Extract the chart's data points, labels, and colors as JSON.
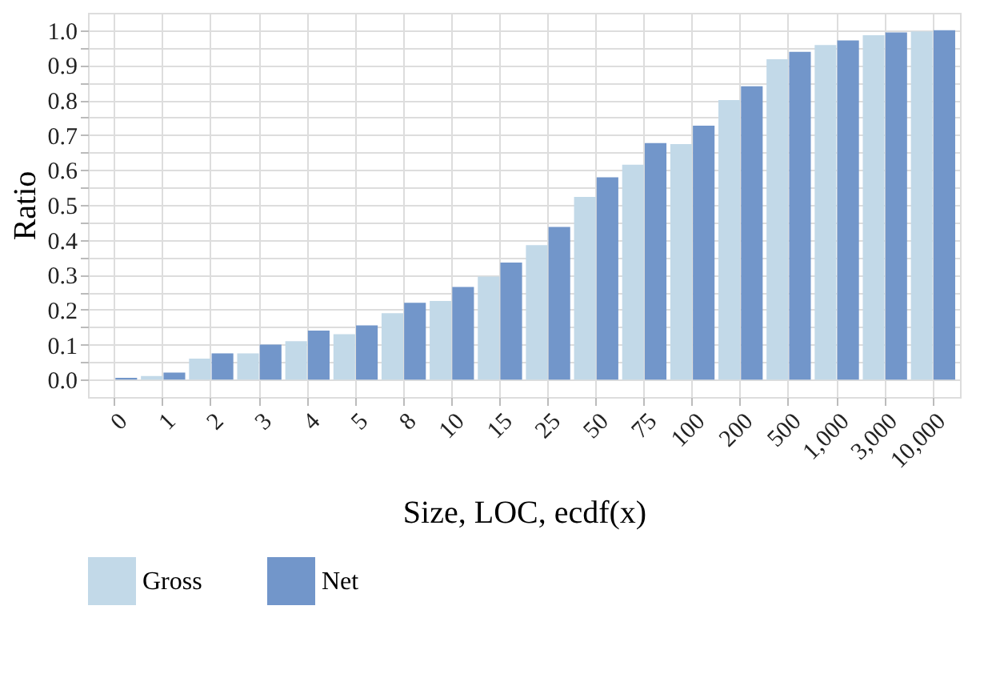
{
  "chart_data": {
    "type": "bar",
    "xlabel": "Size, LOC, ecdf(x)",
    "ylabel": "Ratio",
    "categories": [
      "0",
      "1",
      "2",
      "3",
      "4",
      "5",
      "8",
      "10",
      "15",
      "25",
      "50",
      "75",
      "100",
      "200",
      "500",
      "1,000",
      "3,000",
      "10,000"
    ],
    "series": [
      {
        "name": "Gross",
        "color": "#c2d9e8",
        "values": [
          0.0,
          0.01,
          0.06,
          0.075,
          0.11,
          0.13,
          0.19,
          0.225,
          0.295,
          0.385,
          0.523,
          0.615,
          0.674,
          0.8,
          0.917,
          0.958,
          0.986,
          0.997
        ]
      },
      {
        "name": "Net",
        "color": "#7296ca",
        "values": [
          0.005,
          0.02,
          0.075,
          0.1,
          0.14,
          0.155,
          0.22,
          0.265,
          0.335,
          0.437,
          0.579,
          0.677,
          0.727,
          0.84,
          0.938,
          0.971,
          0.994,
          1.0
        ]
      }
    ],
    "ylim": [
      -0.05,
      1.05
    ],
    "yticks": [
      {
        "value": 0,
        "label": "0.0"
      },
      {
        "value": 0.05,
        "label": null
      },
      0.1,
      {
        "value": 0.15,
        "label": null
      },
      0.2,
      {
        "value": 0.25,
        "label": null
      },
      0.3,
      {
        "value": 0.35,
        "label": null
      },
      0.4,
      {
        "value": 0.45,
        "label": null
      },
      0.5,
      {
        "value": 0.55,
        "label": null
      },
      0.6,
      {
        "value": 0.65,
        "label": null
      },
      0.7,
      {
        "value": 0.75,
        "label": null
      },
      0.8,
      {
        "value": 0.85,
        "label": null
      },
      0.9,
      {
        "value": 0.95,
        "label": null
      },
      {
        "value": 1,
        "label": "1.0"
      }
    ],
    "grid": true,
    "legend": "bottom"
  }
}
